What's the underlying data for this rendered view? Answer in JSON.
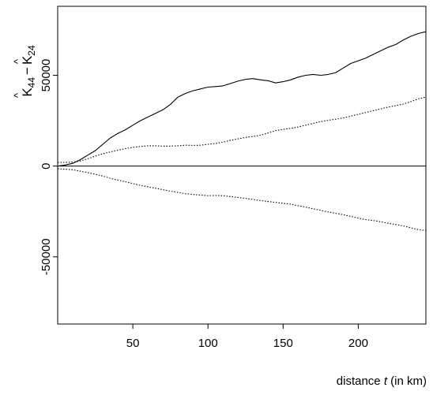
{
  "chart_data": {
    "type": "line",
    "title": "",
    "xlabel": "distance t (in km)",
    "xlabel_parts": [
      "distance ",
      "t",
      " (in km)"
    ],
    "ylabel": "K̂44 − K̂24",
    "ylabel_parts": {
      "term1": "K",
      "term1_hat": "^",
      "term1_sub": "44",
      "minus": "−",
      "term2": "K",
      "term2_hat": "^",
      "term2_sub": "24"
    },
    "xlim": [
      0,
      245
    ],
    "ylim": [
      -87000,
      88000
    ],
    "x_ticks": [
      50,
      100,
      150,
      200
    ],
    "y_ticks": [
      -50000,
      0,
      50000
    ],
    "x_tick_labels": [
      "50",
      "100",
      "150",
      "200"
    ],
    "y_tick_labels": [
      "-50000",
      "0",
      "50000"
    ],
    "reference_line": 0,
    "grid": false,
    "legend": "none",
    "series": [
      {
        "style": "solid",
        "color": "#000000",
        "points": [
          [
            0,
            0
          ],
          [
            5,
            600
          ],
          [
            10,
            1500
          ],
          [
            15,
            3500
          ],
          [
            20,
            6000
          ],
          [
            25,
            8500
          ],
          [
            30,
            12000
          ],
          [
            35,
            15500
          ],
          [
            40,
            18000
          ],
          [
            45,
            20000
          ],
          [
            50,
            22500
          ],
          [
            55,
            25000
          ],
          [
            60,
            27000
          ],
          [
            65,
            29000
          ],
          [
            70,
            31000
          ],
          [
            75,
            34000
          ],
          [
            80,
            38000
          ],
          [
            85,
            40000
          ],
          [
            90,
            41500
          ],
          [
            95,
            42500
          ],
          [
            100,
            43500
          ],
          [
            105,
            43800
          ],
          [
            110,
            44200
          ],
          [
            115,
            45500
          ],
          [
            120,
            46800
          ],
          [
            125,
            47800
          ],
          [
            130,
            48200
          ],
          [
            135,
            47500
          ],
          [
            140,
            47000
          ],
          [
            145,
            45800
          ],
          [
            150,
            46500
          ],
          [
            155,
            47500
          ],
          [
            160,
            49000
          ],
          [
            165,
            50000
          ],
          [
            170,
            50500
          ],
          [
            175,
            50000
          ],
          [
            180,
            50500
          ],
          [
            185,
            51500
          ],
          [
            190,
            54000
          ],
          [
            195,
            56500
          ],
          [
            200,
            58000
          ],
          [
            205,
            59500
          ],
          [
            210,
            61500
          ],
          [
            215,
            63500
          ],
          [
            220,
            65500
          ],
          [
            225,
            67000
          ],
          [
            230,
            69500
          ],
          [
            235,
            71500
          ],
          [
            240,
            73000
          ],
          [
            245,
            74000
          ]
        ]
      },
      {
        "style": "dotted",
        "color": "#000000",
        "name": "upper envelope",
        "points": [
          [
            0,
            2000
          ],
          [
            5,
            2000
          ],
          [
            10,
            2200
          ],
          [
            15,
            2800
          ],
          [
            20,
            4000
          ],
          [
            25,
            5500
          ],
          [
            30,
            6800
          ],
          [
            35,
            7800
          ],
          [
            40,
            8700
          ],
          [
            45,
            9600
          ],
          [
            50,
            10300
          ],
          [
            55,
            10800
          ],
          [
            60,
            11200
          ],
          [
            65,
            11200
          ],
          [
            70,
            11000
          ],
          [
            75,
            11000
          ],
          [
            80,
            11200
          ],
          [
            85,
            11500
          ],
          [
            90,
            11400
          ],
          [
            95,
            11500
          ],
          [
            100,
            12000
          ],
          [
            105,
            12500
          ],
          [
            110,
            13200
          ],
          [
            115,
            14200
          ],
          [
            120,
            15000
          ],
          [
            125,
            15800
          ],
          [
            130,
            16300
          ],
          [
            135,
            17000
          ],
          [
            140,
            18200
          ],
          [
            145,
            19500
          ],
          [
            150,
            20200
          ],
          [
            155,
            20800
          ],
          [
            160,
            21500
          ],
          [
            165,
            22500
          ],
          [
            170,
            23500
          ],
          [
            175,
            24500
          ],
          [
            180,
            25200
          ],
          [
            185,
            25800
          ],
          [
            190,
            26500
          ],
          [
            195,
            27500
          ],
          [
            200,
            28500
          ],
          [
            205,
            29500
          ],
          [
            210,
            30500
          ],
          [
            215,
            31500
          ],
          [
            220,
            32500
          ],
          [
            225,
            33300
          ],
          [
            230,
            34200
          ],
          [
            235,
            35500
          ],
          [
            240,
            37000
          ],
          [
            245,
            38000
          ]
        ]
      },
      {
        "style": "dotted",
        "color": "#000000",
        "name": "lower envelope",
        "points": [
          [
            0,
            -1500
          ],
          [
            5,
            -1700
          ],
          [
            10,
            -2000
          ],
          [
            15,
            -2800
          ],
          [
            20,
            -3600
          ],
          [
            25,
            -4500
          ],
          [
            30,
            -5500
          ],
          [
            35,
            -6700
          ],
          [
            40,
            -7700
          ],
          [
            45,
            -8600
          ],
          [
            50,
            -9600
          ],
          [
            55,
            -10600
          ],
          [
            60,
            -11400
          ],
          [
            65,
            -12200
          ],
          [
            70,
            -13000
          ],
          [
            75,
            -13800
          ],
          [
            80,
            -14500
          ],
          [
            85,
            -15200
          ],
          [
            90,
            -15600
          ],
          [
            95,
            -16000
          ],
          [
            100,
            -16300
          ],
          [
            105,
            -16200
          ],
          [
            110,
            -16300
          ],
          [
            115,
            -16800
          ],
          [
            120,
            -17300
          ],
          [
            125,
            -17800
          ],
          [
            130,
            -18400
          ],
          [
            135,
            -19000
          ],
          [
            140,
            -19500
          ],
          [
            145,
            -20000
          ],
          [
            150,
            -20500
          ],
          [
            155,
            -21000
          ],
          [
            160,
            -21800
          ],
          [
            165,
            -22600
          ],
          [
            170,
            -23500
          ],
          [
            175,
            -24400
          ],
          [
            180,
            -25300
          ],
          [
            185,
            -26000
          ],
          [
            190,
            -26800
          ],
          [
            195,
            -27700
          ],
          [
            200,
            -28700
          ],
          [
            205,
            -29500
          ],
          [
            210,
            -30000
          ],
          [
            215,
            -30700
          ],
          [
            220,
            -31500
          ],
          [
            225,
            -32200
          ],
          [
            230,
            -33000
          ],
          [
            235,
            -34000
          ],
          [
            240,
            -35000
          ],
          [
            245,
            -35500
          ]
        ]
      }
    ]
  }
}
